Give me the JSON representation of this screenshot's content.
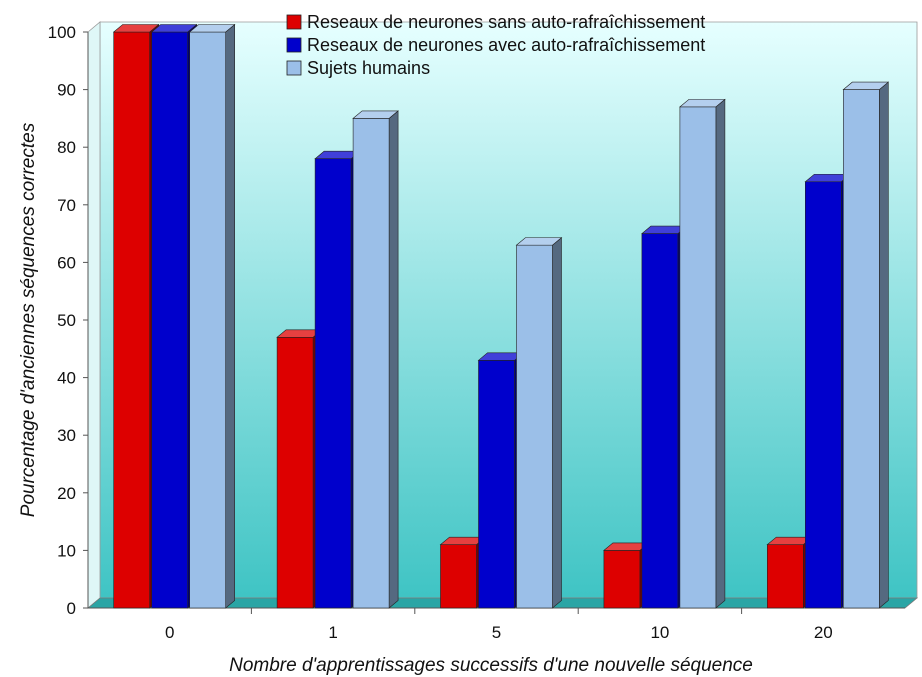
{
  "chart_data": {
    "type": "bar",
    "categories": [
      "0",
      "1",
      "5",
      "10",
      "20"
    ],
    "series": [
      {
        "name": "Reseaux de neurones sans auto-rafraîchissement",
        "values": [
          100,
          47,
          11,
          10,
          11
        ],
        "color": "#dd0000"
      },
      {
        "name": "Reseaux de neurones avec auto-rafraîchissement",
        "values": [
          100,
          78,
          43,
          65,
          74
        ],
        "color": "#0000cc"
      },
      {
        "name": "Sujets humains",
        "values": [
          100,
          85,
          63,
          87,
          90
        ],
        "color": "#9bbfe8"
      }
    ],
    "xlabel": "Nombre d'apprentissages successifs d'une nouvelle séquence",
    "ylabel": "Pourcentage d'anciennes séquences correctes",
    "ylim": [
      0,
      100
    ],
    "yticks": [
      "0",
      "10",
      "20",
      "30",
      "40",
      "50",
      "60",
      "70",
      "80",
      "90",
      "100"
    ],
    "grid": false,
    "legend_position": "top-center",
    "background_colors": {
      "top": "#e6ffff",
      "bottom": "#3fc4c4",
      "floor": "#2aa5a5"
    }
  }
}
